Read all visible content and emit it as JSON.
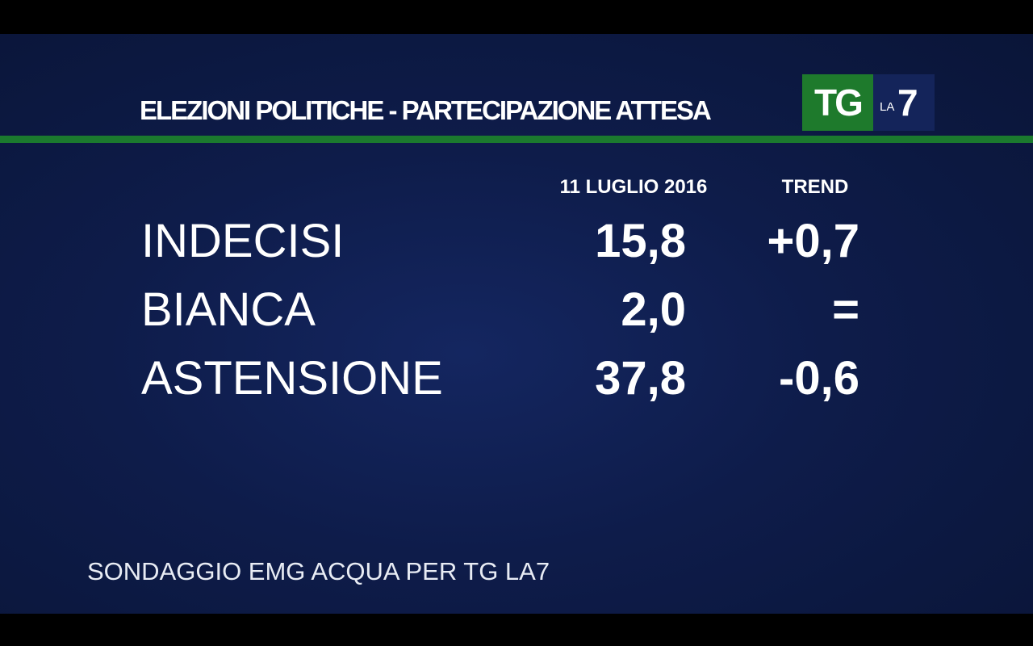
{
  "header": {
    "title": "ELEZIONI POLITICHE - PARTECIPAZIONE ATTESA",
    "logo": {
      "tg": "TG",
      "la": "LA",
      "seven": "7"
    }
  },
  "table": {
    "columns": [
      "11 LUGLIO 2016",
      "TREND"
    ],
    "rows": [
      [
        "INDECISI",
        "15,8",
        "+0,7"
      ],
      [
        "BIANCA",
        "2,0",
        "="
      ],
      [
        "ASTENSIONE",
        "37,8",
        "-0,6"
      ]
    ]
  },
  "footer": {
    "source": "SONDAGGIO EMG ACQUA PER TG LA7"
  }
}
